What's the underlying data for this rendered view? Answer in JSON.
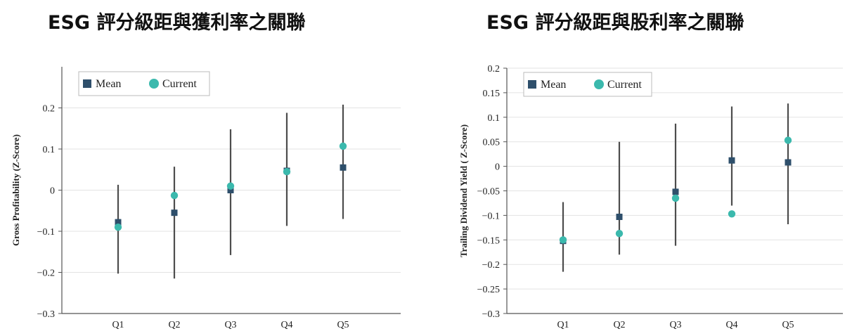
{
  "chart_data": [
    {
      "type": "scatter",
      "title": "ESG 評分級距與獲利率之關聯",
      "ylabel": "Gross Profitability (Z-Score)",
      "xlabel": "",
      "categories": [
        "Q1",
        "Q2",
        "Q3",
        "Q4",
        "Q5"
      ],
      "ylim": [
        -0.3,
        0.3
      ],
      "yticks": [
        -0.3,
        -0.2,
        -0.1,
        0,
        0.1,
        0.2
      ],
      "ytick_labels": [
        "−0.3",
        "−0.2",
        "−0.1",
        "0",
        "0.1",
        "0.2"
      ],
      "grid": true,
      "legend_position": "top-left",
      "series": [
        {
          "name": "Mean",
          "marker": "square",
          "color": "#2e4f6b",
          "values": [
            -0.078,
            -0.055,
            0.0,
            0.047,
            0.055
          ]
        },
        {
          "name": "Current",
          "marker": "circle",
          "color": "#3bb9ad",
          "values": [
            -0.09,
            -0.013,
            0.01,
            0.045,
            0.107
          ]
        }
      ],
      "error_bars": {
        "color": "#4d4d4d",
        "low": [
          -0.203,
          -0.215,
          -0.158,
          -0.087,
          -0.07
        ],
        "high": [
          0.013,
          0.057,
          0.148,
          0.188,
          0.208
        ]
      }
    },
    {
      "type": "scatter",
      "title": "ESG 評分級距與股利率之關聯",
      "ylabel": "Trailing Dividend Yield ( Z-Score)",
      "xlabel": "",
      "categories": [
        "Q1",
        "Q2",
        "Q3",
        "Q4",
        "Q5"
      ],
      "ylim": [
        -0.3,
        0.2
      ],
      "yticks": [
        -0.3,
        -0.25,
        -0.2,
        -0.15,
        -0.1,
        -0.05,
        0,
        0.05,
        0.1,
        0.15,
        0.2
      ],
      "ytick_labels": [
        "−0.3",
        "−0.25",
        "−0.2",
        "−0.15",
        "−0.1",
        "−0.05",
        "0",
        "0.05",
        "0.1",
        "0.15",
        "0.2"
      ],
      "grid": true,
      "legend_position": "top-left",
      "series": [
        {
          "name": "Mean",
          "marker": "square",
          "color": "#2e4f6b",
          "values": [
            -0.152,
            -0.103,
            -0.052,
            0.012,
            0.008
          ]
        },
        {
          "name": "Current",
          "marker": "circle",
          "color": "#3bb9ad",
          "values": [
            -0.15,
            -0.137,
            -0.065,
            -0.097,
            0.053
          ]
        }
      ],
      "error_bars": {
        "color": "#4d4d4d",
        "low": [
          -0.215,
          -0.18,
          -0.162,
          -0.08,
          -0.118
        ],
        "high": [
          -0.073,
          0.05,
          0.087,
          0.122,
          0.128
        ]
      }
    }
  ]
}
